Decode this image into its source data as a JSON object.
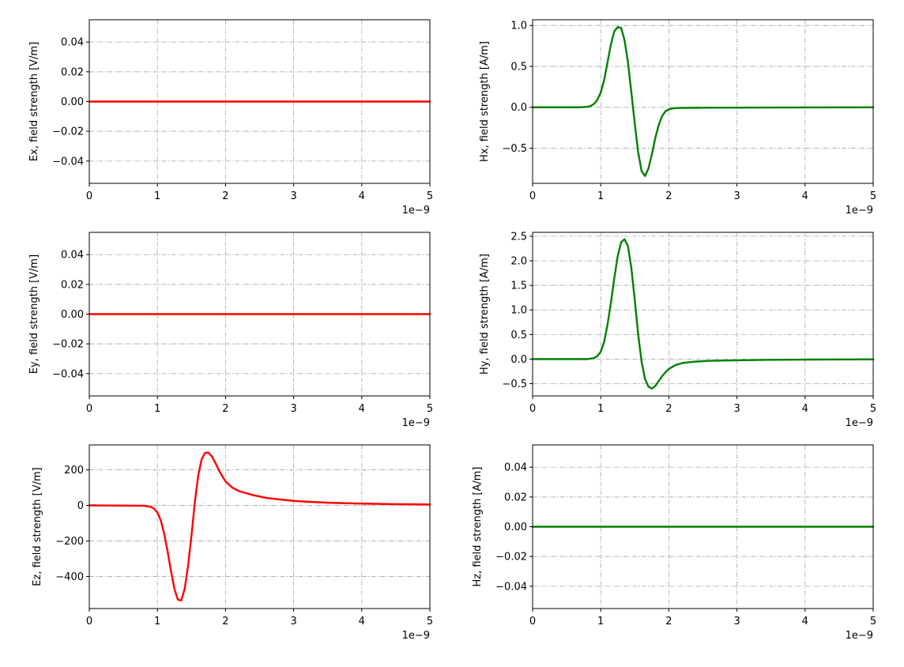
{
  "chart_data": [
    {
      "type": "line",
      "ylabel": "Ex, field strength [V/m]",
      "x_offset_label": "1e−9",
      "xlim": [
        0,
        5
      ],
      "ylim": [
        -0.055,
        0.055
      ],
      "xticks": [
        0,
        1,
        2,
        3,
        4,
        5
      ],
      "xtick_labels": [
        "0",
        "1",
        "2",
        "3",
        "4",
        "5"
      ],
      "yticks": [
        -0.04,
        -0.02,
        0.0,
        0.02,
        0.04
      ],
      "ytick_labels": [
        "−0.04",
        "−0.02",
        "0.00",
        "0.02",
        "0.04"
      ],
      "grid": true,
      "series": [
        {
          "color": "#ff0000",
          "x": [
            0,
            1,
            2,
            3,
            4,
            5
          ],
          "y": [
            0,
            0,
            0,
            0,
            0,
            0
          ]
        }
      ]
    },
    {
      "type": "line",
      "ylabel": "Hx, field strength [A/m]",
      "x_offset_label": "1e−9",
      "xlim": [
        0,
        5
      ],
      "ylim": [
        -0.93,
        1.07
      ],
      "xticks": [
        0,
        1,
        2,
        3,
        4,
        5
      ],
      "xtick_labels": [
        "0",
        "1",
        "2",
        "3",
        "4",
        "5"
      ],
      "yticks": [
        -0.5,
        0.0,
        0.5,
        1.0
      ],
      "ytick_labels": [
        "−0.5",
        "0.0",
        "0.5",
        "1.0"
      ],
      "grid": true,
      "series": [
        {
          "color": "#008000",
          "x": [
            0,
            0.7,
            0.8,
            0.85,
            0.9,
            0.95,
            1.0,
            1.05,
            1.1,
            1.15,
            1.2,
            1.25,
            1.3,
            1.35,
            1.4,
            1.45,
            1.5,
            1.55,
            1.6,
            1.65,
            1.7,
            1.75,
            1.8,
            1.85,
            1.9,
            1.95,
            2.0,
            2.05,
            2.1,
            2.2,
            2.4,
            3.0,
            4.0,
            5.0
          ],
          "y": [
            0,
            0,
            0.005,
            0.015,
            0.04,
            0.09,
            0.18,
            0.33,
            0.55,
            0.77,
            0.93,
            0.98,
            0.97,
            0.82,
            0.55,
            0.18,
            -0.2,
            -0.55,
            -0.78,
            -0.84,
            -0.75,
            -0.58,
            -0.38,
            -0.22,
            -0.11,
            -0.05,
            -0.025,
            -0.015,
            -0.01,
            -0.008,
            -0.006,
            -0.004,
            -0.002,
            -0.001
          ]
        }
      ]
    },
    {
      "type": "line",
      "ylabel": "Ey, field strength [V/m]",
      "x_offset_label": "1e−9",
      "xlim": [
        0,
        5
      ],
      "ylim": [
        -0.055,
        0.055
      ],
      "xticks": [
        0,
        1,
        2,
        3,
        4,
        5
      ],
      "xtick_labels": [
        "0",
        "1",
        "2",
        "3",
        "4",
        "5"
      ],
      "yticks": [
        -0.04,
        -0.02,
        0.0,
        0.02,
        0.04
      ],
      "ytick_labels": [
        "−0.04",
        "−0.02",
        "0.00",
        "0.02",
        "0.04"
      ],
      "grid": true,
      "series": [
        {
          "color": "#ff0000",
          "x": [
            0,
            1,
            2,
            3,
            4,
            5
          ],
          "y": [
            0,
            0,
            0,
            0,
            0,
            0
          ]
        }
      ]
    },
    {
      "type": "line",
      "ylabel": "Hy, field strength [A/m]",
      "x_offset_label": "1e−9",
      "xlim": [
        0,
        5
      ],
      "ylim": [
        -0.75,
        2.58
      ],
      "xticks": [
        0,
        1,
        2,
        3,
        4,
        5
      ],
      "xtick_labels": [
        "0",
        "1",
        "2",
        "3",
        "4",
        "5"
      ],
      "yticks": [
        -0.5,
        0.0,
        0.5,
        1.0,
        1.5,
        2.0,
        2.5
      ],
      "ytick_labels": [
        "−0.5",
        "0.0",
        "0.5",
        "1.0",
        "1.5",
        "2.0",
        "2.5"
      ],
      "grid": true,
      "series": [
        {
          "color": "#008000",
          "x": [
            0,
            0.8,
            0.9,
            0.95,
            1.0,
            1.05,
            1.1,
            1.15,
            1.2,
            1.25,
            1.3,
            1.35,
            1.4,
            1.45,
            1.5,
            1.55,
            1.6,
            1.65,
            1.7,
            1.75,
            1.8,
            1.85,
            1.9,
            1.95,
            2.0,
            2.1,
            2.2,
            2.4,
            2.6,
            3.0,
            3.5,
            4.0,
            5.0
          ],
          "y": [
            0,
            0,
            0.02,
            0.06,
            0.15,
            0.35,
            0.7,
            1.15,
            1.65,
            2.1,
            2.38,
            2.44,
            2.3,
            1.85,
            1.2,
            0.5,
            -0.05,
            -0.4,
            -0.56,
            -0.6,
            -0.55,
            -0.45,
            -0.35,
            -0.27,
            -0.2,
            -0.12,
            -0.08,
            -0.05,
            -0.035,
            -0.025,
            -0.015,
            -0.01,
            -0.005
          ]
        }
      ]
    },
    {
      "type": "line",
      "ylabel": "Ez, field strength [V/m]",
      "x_offset_label": "1e−9",
      "xlim": [
        0,
        5
      ],
      "ylim": [
        -580,
        340
      ],
      "xticks": [
        0,
        1,
        2,
        3,
        4,
        5
      ],
      "xtick_labels": [
        "0",
        "1",
        "2",
        "3",
        "4",
        "5"
      ],
      "yticks": [
        -400,
        -200,
        0,
        200
      ],
      "ytick_labels": [
        "−400",
        "−200",
        "0",
        "200"
      ],
      "grid": true,
      "series": [
        {
          "color": "#ff0000",
          "x": [
            0,
            0.8,
            0.9,
            0.95,
            1.0,
            1.05,
            1.1,
            1.15,
            1.2,
            1.25,
            1.3,
            1.35,
            1.4,
            1.45,
            1.5,
            1.55,
            1.6,
            1.65,
            1.7,
            1.75,
            1.8,
            1.85,
            1.9,
            1.95,
            2.0,
            2.1,
            2.2,
            2.4,
            2.6,
            3.0,
            3.5,
            4.0,
            4.5,
            5.0
          ],
          "y": [
            0,
            -2,
            -8,
            -18,
            -40,
            -85,
            -160,
            -260,
            -370,
            -470,
            -530,
            -535,
            -470,
            -340,
            -170,
            20,
            170,
            260,
            295,
            297,
            275,
            240,
            200,
            165,
            135,
            100,
            80,
            58,
            42,
            25,
            15,
            10,
            7,
            5
          ]
        }
      ]
    },
    {
      "type": "line",
      "ylabel": "Hz, field strength [A/m]",
      "x_offset_label": "1e−9",
      "xlim": [
        0,
        5
      ],
      "ylim": [
        -0.055,
        0.055
      ],
      "xticks": [
        0,
        1,
        2,
        3,
        4,
        5
      ],
      "xtick_labels": [
        "0",
        "1",
        "2",
        "3",
        "4",
        "5"
      ],
      "yticks": [
        -0.04,
        -0.02,
        0.0,
        0.02,
        0.04
      ],
      "ytick_labels": [
        "−0.04",
        "−0.02",
        "0.00",
        "0.02",
        "0.04"
      ],
      "grid": true,
      "series": [
        {
          "color": "#008000",
          "x": [
            0,
            1,
            2,
            3,
            4,
            5
          ],
          "y": [
            0,
            0,
            0,
            0,
            0,
            0
          ]
        }
      ]
    }
  ]
}
